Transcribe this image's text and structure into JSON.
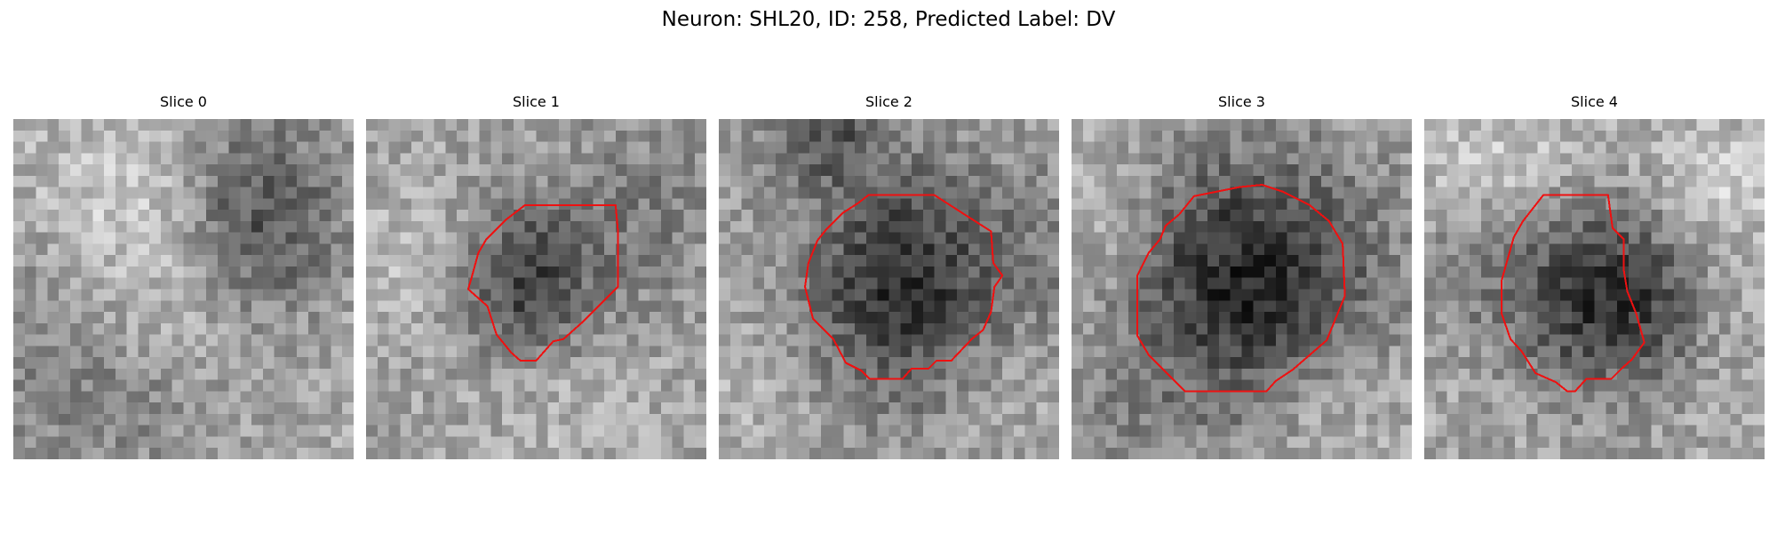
{
  "figure": {
    "title": "Neuron: SHL20, ID: 258, Predicted Label: DV",
    "contour_color": "#ee1111"
  },
  "slices": [
    {
      "title": "Slice 0"
    },
    {
      "title": "Slice 1"
    },
    {
      "title": "Slice 2"
    },
    {
      "title": "Slice 3"
    },
    {
      "title": "Slice 4"
    }
  ]
}
